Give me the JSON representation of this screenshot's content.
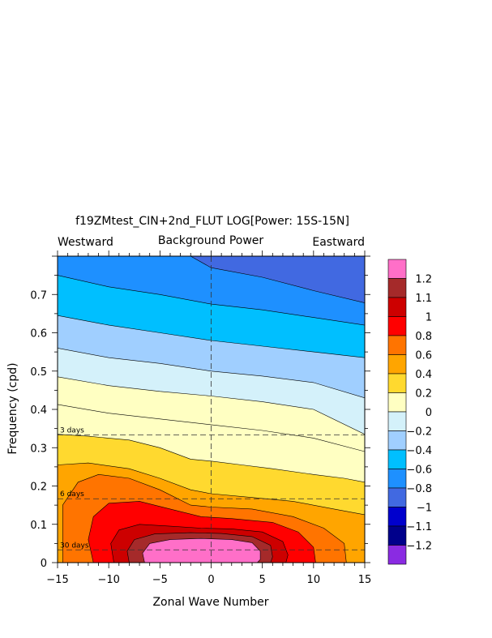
{
  "chart_data": {
    "type": "heatmap",
    "title": "f19ZMtest_CIN+2nd_FLUT LOG[Power: 15S-15N]",
    "subtitle": "Background Power",
    "left_label": "Westward",
    "right_label": "Eastward",
    "xlabel": "Zonal Wave Number",
    "ylabel": "Frequency (cpd)",
    "xlim": [
      -15,
      15
    ],
    "ylim": [
      0,
      0.8
    ],
    "x_ticks": [
      "−15",
      "−10",
      "−5",
      "0",
      "5",
      "10",
      "15"
    ],
    "x_tick_values": [
      -15,
      -10,
      -5,
      0,
      5,
      10,
      15
    ],
    "y_ticks": [
      "0",
      "0.1",
      "0.2",
      "0.3",
      "0.4",
      "0.5",
      "0.6",
      "0.7"
    ],
    "y_tick_values": [
      0,
      0.1,
      0.2,
      0.3,
      0.4,
      0.5,
      0.6,
      0.7
    ],
    "reference_lines": [
      {
        "label": "3 days",
        "frequency": 0.3333
      },
      {
        "label": "6 days",
        "frequency": 0.1667
      },
      {
        "label": "30 days",
        "frequency": 0.0333
      }
    ],
    "zero_wavenumber_line": 0,
    "contour_levels": [
      {
        "label": "1.2",
        "color": "#FF6FC8"
      },
      {
        "label": "1.1",
        "color": "#A52A2A"
      },
      {
        "label": "1",
        "color": "#CD0000"
      },
      {
        "label": "0.8",
        "color": "#FF0000"
      },
      {
        "label": "0.6",
        "color": "#FF7400"
      },
      {
        "label": "0.4",
        "color": "#FFA500"
      },
      {
        "label": "0.2",
        "color": "#FFD92F"
      },
      {
        "label": "0",
        "color": "#FFFFC2"
      },
      {
        "label": "−0.2",
        "color": "#D4F1FA"
      },
      {
        "label": "−0.4",
        "color": "#A0CFFF"
      },
      {
        "label": "−0.6",
        "color": "#00BFFF"
      },
      {
        "label": "−0.8",
        "color": "#1E90FF"
      },
      {
        "label": "−1",
        "color": "#4169E1"
      },
      {
        "label": "−1.1",
        "color": "#0000CD"
      },
      {
        "label": "−1.2",
        "color": "#00008B"
      }
    ],
    "colorbar_bottom_color": "#8A2BE2",
    "contour_bands": [
      {
        "color": "#FFFFC2",
        "lower": [
          [
            -15,
            0.413
          ],
          [
            -10,
            0.39
          ],
          [
            -5,
            0.375
          ],
          [
            0,
            0.36
          ],
          [
            5,
            0.345
          ],
          [
            10,
            0.325
          ],
          [
            15,
            0.29
          ]
        ]
      },
      {
        "color": "#D4F1FA",
        "lower": [
          [
            -15,
            0.485
          ],
          [
            -10,
            0.462
          ],
          [
            -5,
            0.447
          ],
          [
            0,
            0.435
          ],
          [
            5,
            0.42
          ],
          [
            10,
            0.4
          ],
          [
            15,
            0.335
          ]
        ]
      },
      {
        "color": "#A0CFFF",
        "lower": [
          [
            -15,
            0.56
          ],
          [
            -10,
            0.535
          ],
          [
            -5,
            0.52
          ],
          [
            0,
            0.5
          ],
          [
            5,
            0.487
          ],
          [
            10,
            0.47
          ],
          [
            15,
            0.43
          ]
        ]
      },
      {
        "color": "#00BFFF",
        "lower": [
          [
            -15,
            0.645
          ],
          [
            -10,
            0.62
          ],
          [
            -5,
            0.6
          ],
          [
            0,
            0.58
          ],
          [
            5,
            0.565
          ],
          [
            10,
            0.55
          ],
          [
            15,
            0.535
          ]
        ]
      },
      {
        "color": "#1E90FF",
        "lower": [
          [
            -15,
            0.75
          ],
          [
            -10,
            0.72
          ],
          [
            -5,
            0.7
          ],
          [
            0,
            0.675
          ],
          [
            5,
            0.66
          ],
          [
            10,
            0.64
          ],
          [
            15,
            0.62
          ]
        ]
      },
      {
        "color": "#4169E1",
        "lower": [
          [
            -2,
            0.8
          ],
          [
            0,
            0.77
          ],
          [
            5,
            0.745
          ],
          [
            10,
            0.71
          ],
          [
            15,
            0.678
          ]
        ]
      }
    ],
    "contour_regions": [
      {
        "color": "#FFD92F",
        "outline": [
          [
            -15,
            0.335
          ],
          [
            -12,
            0.33
          ],
          [
            -8,
            0.32
          ],
          [
            -5,
            0.3
          ],
          [
            -2,
            0.27
          ],
          [
            0,
            0.265
          ],
          [
            3,
            0.255
          ],
          [
            6,
            0.245
          ],
          [
            10,
            0.23
          ],
          [
            13,
            0.22
          ],
          [
            15,
            0.21
          ],
          [
            15,
            0
          ],
          [
            -15,
            0
          ]
        ]
      },
      {
        "color": "#FFA500",
        "outline": [
          [
            -15,
            0.255
          ],
          [
            -12,
            0.26
          ],
          [
            -8,
            0.245
          ],
          [
            -5,
            0.22
          ],
          [
            -2,
            0.19
          ],
          [
            0,
            0.18
          ],
          [
            4,
            0.17
          ],
          [
            8,
            0.16
          ],
          [
            12,
            0.14
          ],
          [
            15,
            0.125
          ],
          [
            15,
            0
          ],
          [
            -15,
            0
          ]
        ]
      },
      {
        "color": "#FF7400",
        "outline": [
          [
            -14.5,
            0
          ],
          [
            -14.5,
            0.15
          ],
          [
            -13,
            0.21
          ],
          [
            -11,
            0.23
          ],
          [
            -8,
            0.22
          ],
          [
            -5,
            0.19
          ],
          [
            -2,
            0.15
          ],
          [
            0,
            0.145
          ],
          [
            4,
            0.14
          ],
          [
            8,
            0.12
          ],
          [
            11,
            0.09
          ],
          [
            13,
            0.05
          ],
          [
            13.2,
            0
          ]
        ]
      },
      {
        "color": "#FF0000",
        "outline": [
          [
            -11.5,
            0
          ],
          [
            -12,
            0.06
          ],
          [
            -11.5,
            0.12
          ],
          [
            -10,
            0.155
          ],
          [
            -7,
            0.16
          ],
          [
            -4,
            0.14
          ],
          [
            -1,
            0.12
          ],
          [
            2,
            0.115
          ],
          [
            6,
            0.105
          ],
          [
            8.5,
            0.08
          ],
          [
            10,
            0.04
          ],
          [
            10.2,
            0
          ]
        ]
      },
      {
        "color": "#CD0000",
        "outline": [
          [
            -9.5,
            0
          ],
          [
            -9.8,
            0.05
          ],
          [
            -9,
            0.085
          ],
          [
            -7,
            0.1
          ],
          [
            -4,
            0.095
          ],
          [
            -1,
            0.09
          ],
          [
            2,
            0.088
          ],
          [
            5,
            0.08
          ],
          [
            7,
            0.055
          ],
          [
            7.5,
            0.02
          ],
          [
            7.3,
            0
          ]
        ]
      },
      {
        "color": "#A52A2A",
        "outline": [
          [
            -8,
            0
          ],
          [
            -8.2,
            0.03
          ],
          [
            -7.5,
            0.06
          ],
          [
            -5.5,
            0.075
          ],
          [
            -2,
            0.078
          ],
          [
            1,
            0.076
          ],
          [
            4,
            0.068
          ],
          [
            5.8,
            0.045
          ],
          [
            6,
            0.015
          ],
          [
            5.8,
            0
          ]
        ]
      },
      {
        "color": "#FF6FC8",
        "outline": [
          [
            -6.5,
            0
          ],
          [
            -6.7,
            0.025
          ],
          [
            -6,
            0.05
          ],
          [
            -4,
            0.06
          ],
          [
            -1,
            0.063
          ],
          [
            2,
            0.06
          ],
          [
            4,
            0.052
          ],
          [
            4.8,
            0.03
          ],
          [
            4.8,
            0.008
          ],
          [
            4.5,
            0
          ]
        ]
      }
    ],
    "contour_lines": [
      [
        [
          -15,
          0.835
        ],
        [
          -2,
          0.8
        ],
        [
          0,
          0.77
        ],
        [
          5,
          0.745
        ],
        [
          10,
          0.71
        ],
        [
          15,
          0.678
        ]
      ],
      [
        [
          -15,
          0.75
        ],
        [
          -10,
          0.72
        ],
        [
          -5,
          0.7
        ],
        [
          0,
          0.675
        ],
        [
          5,
          0.66
        ],
        [
          10,
          0.64
        ],
        [
          15,
          0.62
        ]
      ],
      [
        [
          -15,
          0.645
        ],
        [
          -10,
          0.62
        ],
        [
          -5,
          0.6
        ],
        [
          0,
          0.58
        ],
        [
          5,
          0.565
        ],
        [
          10,
          0.55
        ],
        [
          15,
          0.535
        ]
      ],
      [
        [
          -15,
          0.56
        ],
        [
          -10,
          0.535
        ],
        [
          -5,
          0.52
        ],
        [
          0,
          0.5
        ],
        [
          5,
          0.487
        ],
        [
          10,
          0.47
        ],
        [
          15,
          0.43
        ]
      ],
      [
        [
          -15,
          0.485
        ],
        [
          -10,
          0.462
        ],
        [
          -5,
          0.447
        ],
        [
          0,
          0.435
        ],
        [
          5,
          0.42
        ],
        [
          10,
          0.4
        ],
        [
          15,
          0.335
        ]
      ],
      [
        [
          -15,
          0.413
        ],
        [
          -10,
          0.39
        ],
        [
          -5,
          0.375
        ],
        [
          0,
          0.36
        ],
        [
          5,
          0.345
        ],
        [
          10,
          0.325
        ],
        [
          15,
          0.29
        ]
      ]
    ]
  }
}
